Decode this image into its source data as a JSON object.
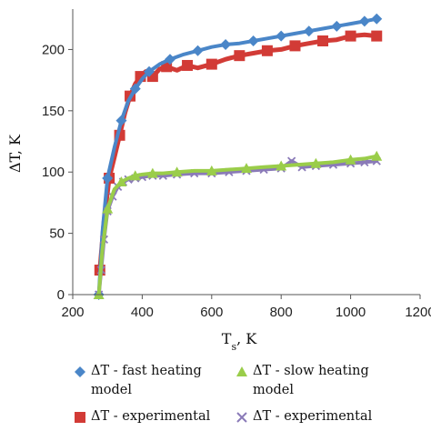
{
  "chart_data": {
    "type": "scatter",
    "title": "",
    "xlabel": "Ts, K",
    "xlabel_main": "T",
    "xlabel_sub": "s",
    "xlabel_rest": ", K",
    "ylabel": "ΔT, K",
    "xlim": [
      200,
      1200
    ],
    "ylim": [
      0,
      230
    ],
    "xticks": [
      "200",
      "400",
      "600",
      "800",
      "1000",
      "1200"
    ],
    "yticks": [
      "0",
      "50",
      "100",
      "150",
      "200"
    ],
    "grid": false,
    "legend_position": "bottom",
    "series": [
      {
        "name": "ΔT - fast heating model",
        "marker": "diamond",
        "color": "#4a86c8",
        "x": [
          275,
          285,
          300,
          320,
          340,
          360,
          380,
          400,
          420,
          450,
          480,
          520,
          560,
          600,
          640,
          680,
          720,
          760,
          800,
          840,
          880,
          920,
          960,
          1000,
          1040,
          1075
        ],
        "y": [
          0,
          50,
          95,
          120,
          142,
          158,
          168,
          176,
          182,
          188,
          192,
          196,
          199,
          202,
          204,
          205,
          207,
          209,
          211,
          213,
          215,
          217,
          219,
          221,
          223,
          225
        ]
      },
      {
        "name": "ΔT - experimental",
        "marker": "square",
        "color": "#d23b36",
        "x": [
          278,
          290,
          305,
          320,
          335,
          350,
          365,
          380,
          395,
          410,
          430,
          450,
          470,
          500,
          530,
          560,
          600,
          640,
          680,
          720,
          760,
          800,
          840,
          880,
          920,
          960,
          1000,
          1040,
          1075
        ],
        "y": [
          20,
          60,
          95,
          112,
          130,
          148,
          162,
          172,
          178,
          182,
          178,
          184,
          186,
          183,
          187,
          185,
          188,
          192,
          195,
          197,
          199,
          200,
          203,
          205,
          207,
          208,
          211,
          212,
          211
        ]
      },
      {
        "name": "ΔT - slow heating model",
        "marker": "triangle",
        "color": "#9acd4a",
        "x": [
          275,
          285,
          300,
          320,
          340,
          360,
          380,
          400,
          430,
          460,
          500,
          550,
          600,
          650,
          700,
          750,
          800,
          850,
          900,
          950,
          1000,
          1040,
          1075
        ],
        "y": [
          0,
          36,
          70,
          86,
          92,
          95,
          97,
          98,
          99,
          99,
          100,
          101,
          101,
          102,
          103,
          104,
          105,
          106,
          107,
          108,
          110,
          111,
          113
        ]
      },
      {
        "name": "ΔT - experimental",
        "marker": "cross",
        "color": "#8a7ab8",
        "x": [
          275,
          282,
          290,
          300,
          315,
          330,
          345,
          360,
          380,
          400,
          430,
          460,
          500,
          550,
          600,
          650,
          700,
          750,
          800,
          830,
          860,
          900,
          950,
          1000,
          1040,
          1075
        ],
        "y": [
          0,
          20,
          45,
          68,
          80,
          88,
          92,
          94,
          95,
          96,
          97,
          97,
          98,
          99,
          99,
          100,
          101,
          102,
          103,
          109,
          104,
          105,
          106,
          107,
          108,
          109
        ]
      }
    ]
  },
  "legend": {
    "items": [
      {
        "marker": "diamond",
        "color": "#4a86c8",
        "lines": [
          "ΔT - fast heating",
          "model"
        ]
      },
      {
        "marker": "triangle",
        "color": "#9acd4a",
        "lines": [
          "ΔT - slow heating",
          "model"
        ]
      },
      {
        "marker": "square",
        "color": "#d23b36",
        "lines": [
          "ΔT - experimental"
        ]
      },
      {
        "marker": "cross",
        "color": "#8a7ab8",
        "lines": [
          "ΔT - experimental"
        ]
      }
    ]
  }
}
